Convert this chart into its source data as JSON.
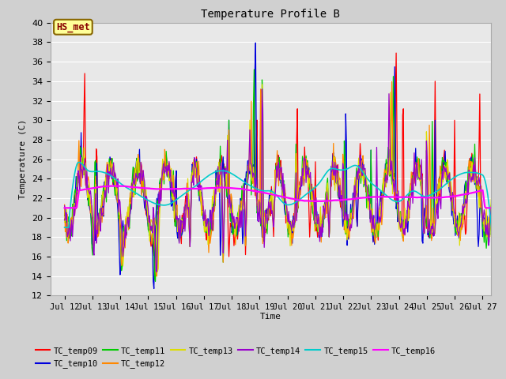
{
  "title": "Temperature Profile B",
  "xlabel": "Time",
  "ylabel": "Temperature (C)",
  "ylim": [
    12,
    40
  ],
  "xlim_days": [
    11.5,
    27.3
  ],
  "fig_bg_color": "#d0d0d0",
  "plot_bg_color": "#e8e8e8",
  "grid_color": "#ffffff",
  "annotation_text": "HS_met",
  "annotation_bg": "#ffff99",
  "annotation_border": "#886600",
  "annotation_text_color": "#880000",
  "series_colors": {
    "TC_temp09": "#ff0000",
    "TC_temp10": "#0000dd",
    "TC_temp11": "#00cc00",
    "TC_temp12": "#ff8800",
    "TC_temp13": "#dddd00",
    "TC_temp14": "#9900cc",
    "TC_temp15": "#00cccc",
    "TC_temp16": "#ff00ff"
  },
  "tick_labels": [
    "Jul 12",
    "Jul 13",
    "Jul 14",
    "Jul 15",
    "Jul 16",
    "Jul 17",
    "Jul 18",
    "Jul 19",
    "Jul 20",
    "Jul 21",
    "Jul 22",
    "Jul 23",
    "Jul 24",
    "Jul 25",
    "Jul 26",
    "Jul 27"
  ],
  "tick_positions": [
    12,
    13,
    14,
    15,
    16,
    17,
    18,
    19,
    20,
    21,
    22,
    23,
    24,
    25,
    26,
    27
  ]
}
